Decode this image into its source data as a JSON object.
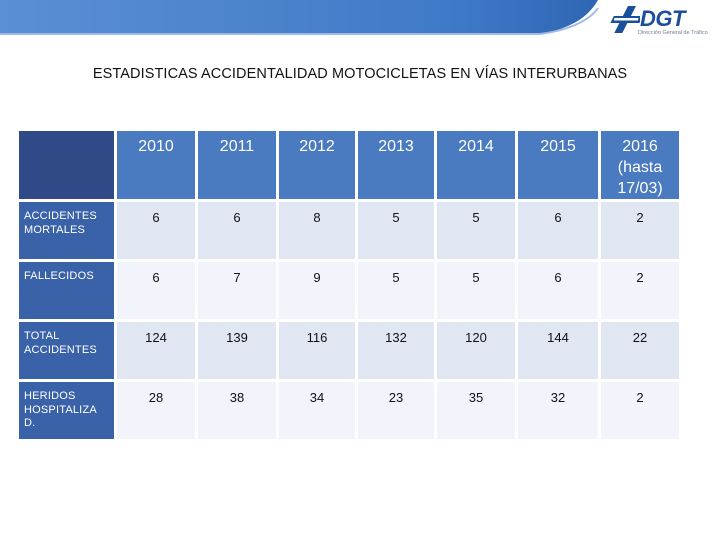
{
  "header": {
    "logo_text": "DGT",
    "logo_subtitle": "Dirección General de Tráfico"
  },
  "title": "ESTADISTICAS ACCIDENTALIDAD MOTOCICLETAS EN VÍAS INTERURBANAS",
  "colors": {
    "header_blue": "#4a7ac0",
    "corner_blue": "#2f4a86",
    "row_label_blue": "#3a62a8",
    "band_a": "#e1e7f2",
    "band_b": "#f1f4fa",
    "logo_blue": "#1a4f9c"
  },
  "table": {
    "corner": "",
    "columns": [
      "2010",
      "2011",
      "2012",
      "2013",
      "2014",
      "2015",
      "2016 (hasta 17/03)"
    ],
    "rows": [
      {
        "label": "ACCIDENTES MORTALES",
        "values": [
          "6",
          "6",
          "8",
          "5",
          "5",
          "6",
          "2"
        ]
      },
      {
        "label": "FALLECIDOS",
        "values": [
          "6",
          "7",
          "9",
          "5",
          "5",
          "6",
          "2"
        ]
      },
      {
        "label": "TOTAL ACCIDENTES",
        "values": [
          "124",
          "139",
          "116",
          "132",
          "120",
          "144",
          "22"
        ]
      },
      {
        "label": "HERIDOS HOSPITALIZA D.",
        "values": [
          "28",
          "38",
          "34",
          "23",
          "35",
          "32",
          "2"
        ]
      }
    ]
  }
}
